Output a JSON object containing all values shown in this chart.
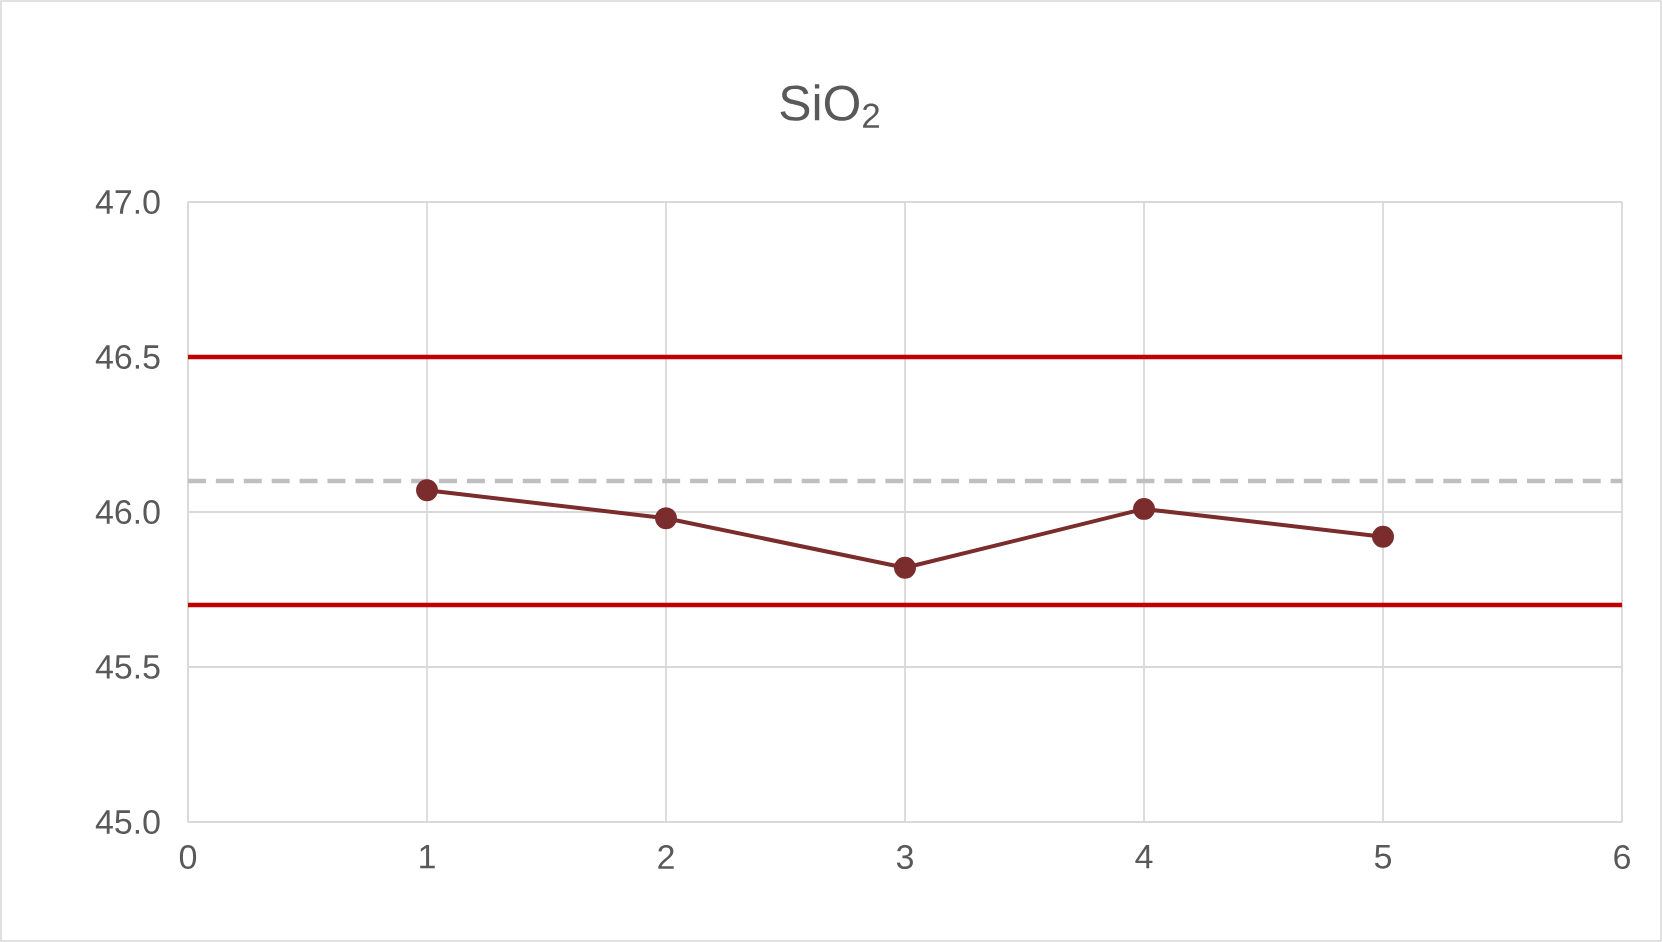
{
  "chart_data": {
    "type": "line",
    "title": "SiO$_{2}$",
    "x": [
      1,
      2,
      3,
      4,
      5
    ],
    "series": [
      {
        "color": "#7b2c2c",
        "values": [
          46.07,
          45.98,
          45.82,
          46.01,
          45.92
        ]
      }
    ],
    "xlim": [
      0,
      6
    ],
    "xticks": [
      0,
      1,
      2,
      3,
      4,
      5,
      6
    ],
    "ylim": [
      45.0,
      47.0
    ],
    "yticks": [
      {
        "value": 45.0,
        "label": "45.0"
      },
      {
        "value": 45.5,
        "label": "45.5"
      },
      {
        "value": 46.0,
        "label": "46.0"
      },
      {
        "value": 46.5,
        "label": "46.5"
      },
      {
        "value": 47.0,
        "label": "47.0"
      }
    ],
    "grid": true,
    "marker": "circle",
    "line_style": "solid",
    "ref_lines": [
      {
        "axis": "y",
        "value": 46.5,
        "color": "#c00000",
        "line_style": "solid"
      },
      {
        "axis": "y",
        "value": 45.7,
        "color": "#c00000",
        "line_style": "solid"
      },
      {
        "axis": "y",
        "value": 46.1,
        "color": "#bfbfbf",
        "line_style": "dashed"
      }
    ]
  }
}
